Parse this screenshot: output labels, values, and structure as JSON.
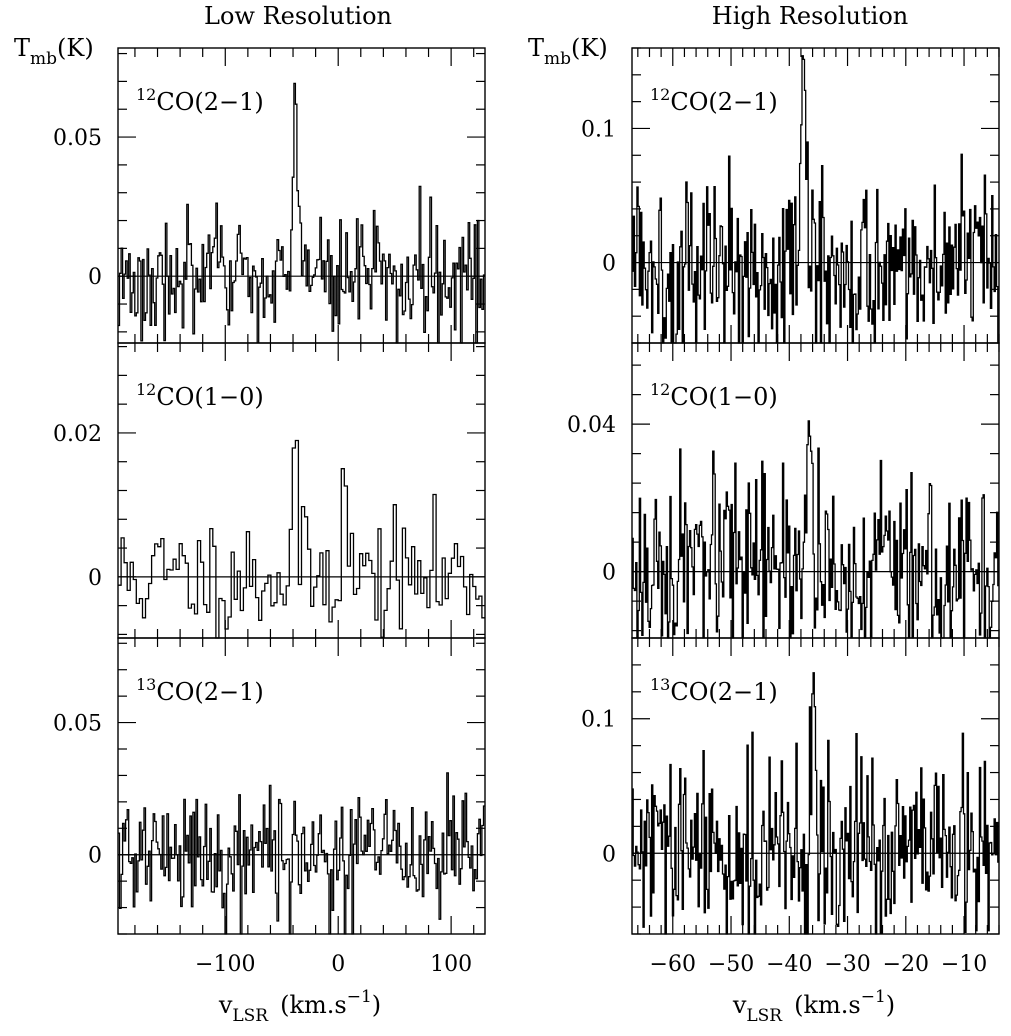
{
  "figure": {
    "left_title": "Low Resolution",
    "right_title": "High Resolution",
    "ylabel_main": "T",
    "ylabel_sub": "mb",
    "ylabel_unit": "(K)",
    "xlabel_main": "v",
    "xlabel_sub": "LSR",
    "xlabel_unit_prefix": "(km.s",
    "xlabel_unit_exp": "−1",
    "xlabel_unit_suffix": ")"
  },
  "chart_data": [
    {
      "type": "line",
      "column": "left",
      "row": 0,
      "label_iso": "12",
      "label_line": "CO(2−1)",
      "xlim": [
        -195,
        130
      ],
      "ylim": [
        -0.024,
        0.082
      ],
      "yticks": [
        0,
        0.05
      ],
      "ytick_labels": [
        "0",
        "0.05"
      ],
      "xticks": [
        -100,
        0,
        100
      ],
      "xtick_labels": [
        "",
        "",
        ""
      ],
      "spike_x": -38,
      "spike_peak": 0.07,
      "noise": 0.011,
      "seed": 3
    },
    {
      "type": "line",
      "column": "left",
      "row": 1,
      "label_iso": "12",
      "label_line": "CO(1−0)",
      "xlim": [
        -195,
        130
      ],
      "ylim": [
        -0.0085,
        0.0325
      ],
      "yticks": [
        0,
        0.02
      ],
      "ytick_labels": [
        "0",
        "0.02"
      ],
      "xticks": [
        -100,
        0,
        100
      ],
      "xtick_labels": [
        "",
        "",
        ""
      ],
      "spike_x": -38,
      "spike_peak": 0.023,
      "spike2_x": 5,
      "spike2_peak": 0.0205,
      "noise": 0.0042,
      "seed": 11
    },
    {
      "type": "line",
      "column": "left",
      "row": 2,
      "label_iso": "13",
      "label_line": "CO(2−1)",
      "xlim": [
        -195,
        130
      ],
      "ylim": [
        -0.03,
        0.082
      ],
      "yticks": [
        0,
        0.05
      ],
      "ytick_labels": [
        "0",
        "0.05"
      ],
      "xticks": [
        -100,
        0,
        100
      ],
      "xtick_labels": [
        "−100",
        "0",
        "100"
      ],
      "spike_x": null,
      "spike_peak": 0,
      "noise": 0.012,
      "seed": 21
    },
    {
      "type": "line",
      "column": "right",
      "row": 0,
      "label_iso": "12",
      "label_line": "CO(2−1)",
      "xlim": [
        -67,
        -4
      ],
      "ylim": [
        -0.06,
        0.16
      ],
      "yticks": [
        0,
        0.1
      ],
      "ytick_labels": [
        "0",
        "0.1"
      ],
      "xticks": [
        -60,
        -50,
        -40,
        -30,
        -20,
        -10
      ],
      "xtick_labels": [
        "",
        "",
        "",
        "",
        "",
        ""
      ],
      "spike_x": -37.5,
      "spike_peak": 0.13,
      "noise": 0.034,
      "seed": 5
    },
    {
      "type": "line",
      "column": "right",
      "row": 1,
      "label_iso": "12",
      "label_line": "CO(1−0)",
      "xlim": [
        -67,
        -4
      ],
      "ylim": [
        -0.018,
        0.062
      ],
      "yticks": [
        0,
        0.04
      ],
      "ytick_labels": [
        "0",
        "0.04"
      ],
      "xticks": [
        -60,
        -50,
        -40,
        -30,
        -20,
        -10
      ],
      "xtick_labels": [
        "",
        "",
        "",
        "",
        "",
        ""
      ],
      "spike_x": -36.5,
      "spike_peak": 0.046,
      "noise": 0.0125,
      "seed": 17
    },
    {
      "type": "line",
      "column": "right",
      "row": 2,
      "label_iso": "13",
      "label_line": "CO(2−1)",
      "xlim": [
        -67,
        -4
      ],
      "ylim": [
        -0.06,
        0.16
      ],
      "yticks": [
        0,
        0.1
      ],
      "ytick_labels": [
        "0",
        "0.1"
      ],
      "xticks": [
        -60,
        -50,
        -40,
        -30,
        -20,
        -10
      ],
      "xtick_labels": [
        "−60",
        "−50",
        "−40",
        "−30",
        "−20",
        "−10"
      ],
      "spike_x": -36,
      "spike_peak": 0.12,
      "noise": 0.034,
      "seed": 29
    }
  ]
}
